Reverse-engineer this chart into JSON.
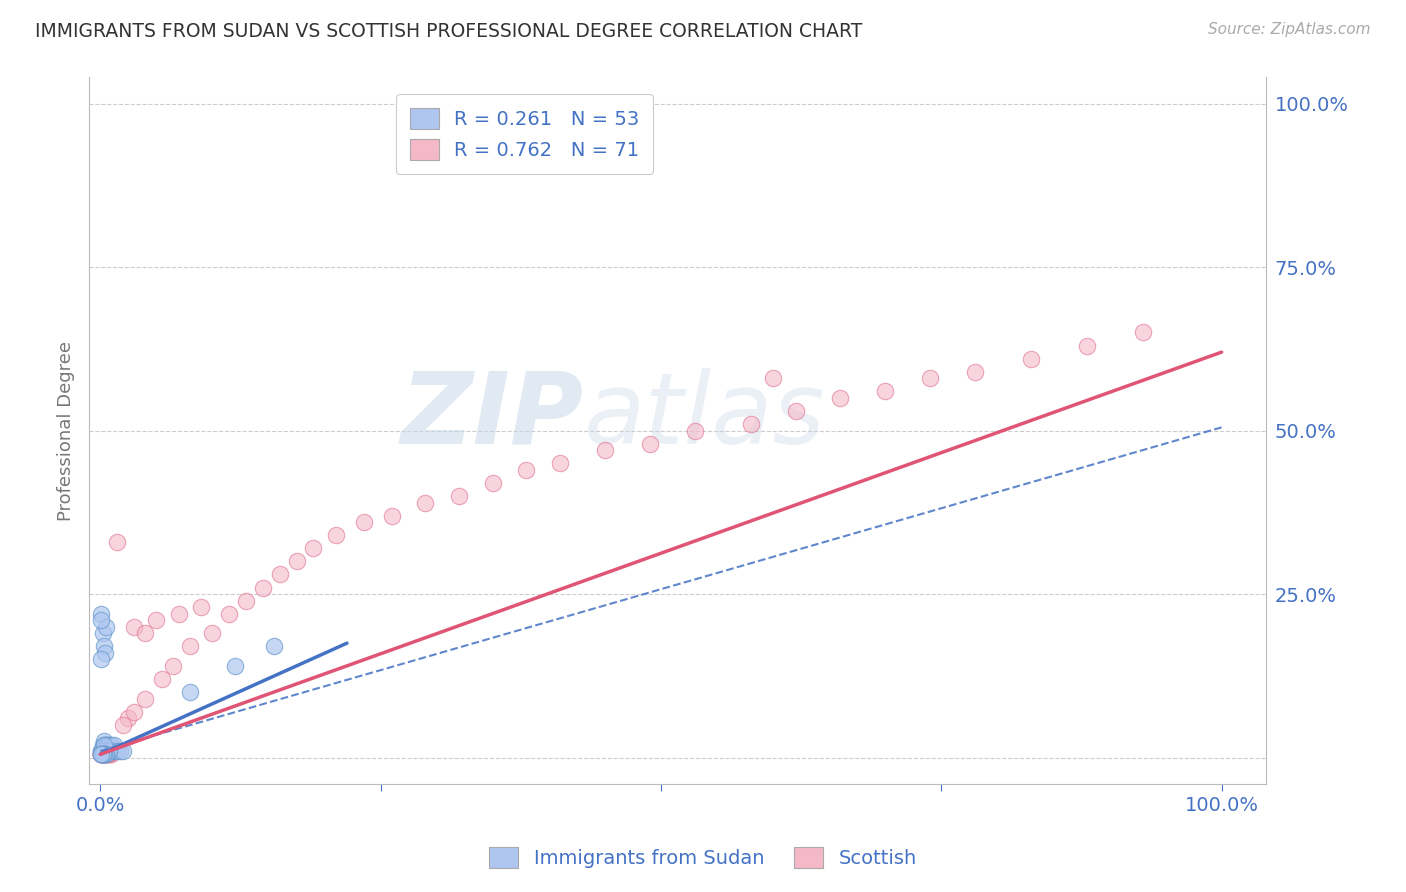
{
  "title": "IMMIGRANTS FROM SUDAN VS SCOTTISH PROFESSIONAL DEGREE CORRELATION CHART",
  "source": "Source: ZipAtlas.com",
  "ylabel": "Professional Degree",
  "legend_labels": [
    "Immigrants from Sudan",
    "Scottish"
  ],
  "r_blue": 0.261,
  "n_blue": 53,
  "r_pink": 0.762,
  "n_pink": 71,
  "xlim": [
    -0.01,
    1.04
  ],
  "ylim": [
    -0.04,
    1.04
  ],
  "blue_color": "#aec6f0",
  "blue_edge_color": "#6699cc",
  "blue_line_color": "#4472c4",
  "pink_color": "#f4b8c8",
  "pink_edge_color": "#e07090",
  "pink_line_color": "#e05575",
  "text_color": "#4472c4",
  "title_color": "#333333",
  "watermark_color": "#c5d5e8",
  "grid_color": "#cccccc",
  "blue_line": [
    [
      0.0,
      0.005
    ],
    [
      0.22,
      0.175
    ]
  ],
  "pink_line": [
    [
      0.0,
      0.005
    ],
    [
      1.0,
      0.62
    ]
  ],
  "dash_line": [
    [
      0.0,
      0.01
    ],
    [
      1.0,
      0.505
    ]
  ],
  "blue_scatter_x": [
    0.001,
    0.002,
    0.002,
    0.003,
    0.003,
    0.003,
    0.003,
    0.004,
    0.004,
    0.004,
    0.005,
    0.005,
    0.005,
    0.006,
    0.006,
    0.006,
    0.007,
    0.007,
    0.008,
    0.008,
    0.009,
    0.01,
    0.01,
    0.012,
    0.012,
    0.015,
    0.018,
    0.02,
    0.001,
    0.002,
    0.003,
    0.004,
    0.005,
    0.006,
    0.007,
    0.008,
    0.001,
    0.002,
    0.003,
    0.003,
    0.004,
    0.005,
    0.001,
    0.002,
    0.003,
    0.001,
    0.002,
    0.001,
    0.001,
    0.001,
    0.08,
    0.12,
    0.155
  ],
  "blue_scatter_y": [
    0.01,
    0.02,
    0.015,
    0.01,
    0.02,
    0.025,
    0.01,
    0.01,
    0.02,
    0.015,
    0.01,
    0.02,
    0.015,
    0.01,
    0.02,
    0.015,
    0.01,
    0.02,
    0.01,
    0.02,
    0.01,
    0.01,
    0.02,
    0.01,
    0.02,
    0.01,
    0.01,
    0.01,
    0.22,
    0.19,
    0.17,
    0.16,
    0.2,
    0.01,
    0.01,
    0.01,
    0.01,
    0.005,
    0.005,
    0.02,
    0.005,
    0.005,
    0.005,
    0.005,
    0.005,
    0.005,
    0.005,
    0.005,
    0.15,
    0.21,
    0.1,
    0.14,
    0.17
  ],
  "pink_scatter_x": [
    0.001,
    0.002,
    0.002,
    0.003,
    0.003,
    0.004,
    0.004,
    0.005,
    0.005,
    0.006,
    0.006,
    0.007,
    0.007,
    0.008,
    0.008,
    0.009,
    0.01,
    0.01,
    0.001,
    0.002,
    0.003,
    0.004,
    0.005,
    0.006,
    0.001,
    0.002,
    0.003,
    0.001,
    0.001,
    0.001,
    0.025,
    0.03,
    0.04,
    0.055,
    0.065,
    0.08,
    0.1,
    0.115,
    0.13,
    0.145,
    0.16,
    0.175,
    0.19,
    0.21,
    0.235,
    0.26,
    0.29,
    0.32,
    0.35,
    0.38,
    0.41,
    0.45,
    0.49,
    0.53,
    0.58,
    0.62,
    0.66,
    0.7,
    0.74,
    0.78,
    0.83,
    0.88,
    0.93,
    0.015,
    0.02,
    0.03,
    0.04,
    0.05,
    0.07,
    0.09,
    0.6
  ],
  "pink_scatter_y": [
    0.005,
    0.005,
    0.008,
    0.005,
    0.008,
    0.005,
    0.008,
    0.005,
    0.008,
    0.005,
    0.008,
    0.005,
    0.008,
    0.005,
    0.008,
    0.005,
    0.005,
    0.008,
    0.005,
    0.005,
    0.005,
    0.005,
    0.005,
    0.005,
    0.005,
    0.005,
    0.005,
    0.005,
    0.005,
    0.005,
    0.06,
    0.07,
    0.09,
    0.12,
    0.14,
    0.17,
    0.19,
    0.22,
    0.24,
    0.26,
    0.28,
    0.3,
    0.32,
    0.34,
    0.36,
    0.37,
    0.39,
    0.4,
    0.42,
    0.44,
    0.45,
    0.47,
    0.48,
    0.5,
    0.51,
    0.53,
    0.55,
    0.56,
    0.58,
    0.59,
    0.61,
    0.63,
    0.65,
    0.33,
    0.05,
    0.2,
    0.19,
    0.21,
    0.22,
    0.23,
    0.58
  ]
}
